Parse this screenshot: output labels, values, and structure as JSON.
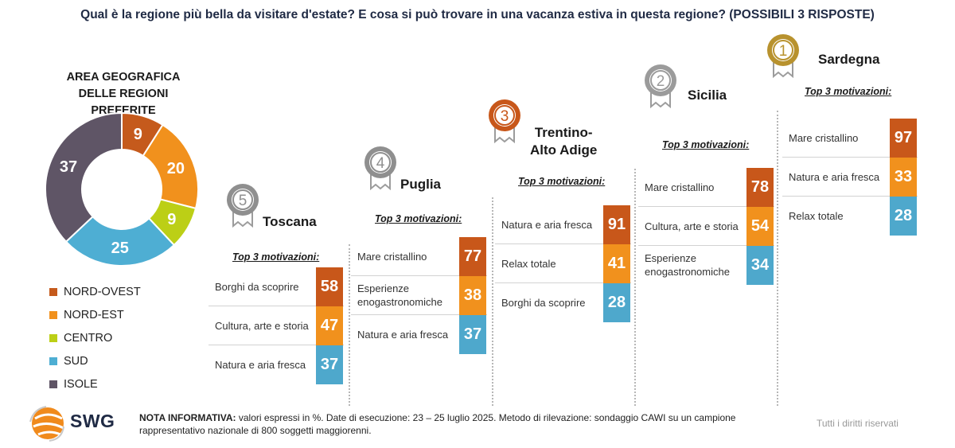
{
  "title": "Qual è la regione più bella da visitare d'estate? E cosa si può trovare in una vacanza estiva in questa regione? (POSSIBILI 3 RISPOSTE)",
  "colors": {
    "top1": "#c8571a",
    "top2": "#f1911d",
    "top3": "#4ea8cc",
    "nord_ovest": "#c55a1c",
    "nord_est": "#f1911d",
    "centro": "#bccf16",
    "sud": "#4eaed3",
    "isole": "#5f5566",
    "gold": "#b8922e",
    "silver": "#9b9b9b",
    "bronze": "#c8571a",
    "grey_medal": "#8f8f8f"
  },
  "chart_data": [
    {
      "type": "pie",
      "title": "AREA GEOGRAFICA DELLE REGIONI PREFERITE",
      "title_lines": [
        "AREA GEOGRAFICA",
        "DELLE REGIONI PREFERITE"
      ],
      "categories": [
        "NORD-OVEST",
        "NORD-EST",
        "CENTRO",
        "SUD",
        "ISOLE"
      ],
      "values": [
        9,
        20,
        9,
        25,
        37
      ],
      "legend": "bottom-left",
      "donut": true
    },
    {
      "type": "table",
      "rank": 5,
      "title": "Toscana",
      "subtitle": "Top 3 motivazioni:",
      "categories": [
        "Borghi da scoprire",
        "Cultura, arte e storia",
        "Natura e aria fresca"
      ],
      "values": [
        58,
        47,
        37
      ]
    },
    {
      "type": "table",
      "rank": 4,
      "title": "Puglia",
      "subtitle": "Top 3 motivazioni:",
      "categories": [
        "Mare cristallino",
        "Esperienze enogastronomiche",
        "Natura e aria fresca"
      ],
      "values": [
        77,
        38,
        37
      ]
    },
    {
      "type": "table",
      "rank": 3,
      "title": "Trentino-Alto Adige",
      "title_lines": [
        "Trentino-",
        "Alto Adige"
      ],
      "subtitle": "Top 3 motivazioni:",
      "categories": [
        "Natura e aria fresca",
        "Relax totale",
        "Borghi da scoprire"
      ],
      "values": [
        91,
        41,
        28
      ]
    },
    {
      "type": "table",
      "rank": 2,
      "title": "Sicilia",
      "subtitle": "Top 3 motivazioni:",
      "categories": [
        "Mare cristallino",
        "Cultura, arte e storia",
        "Esperienze enogastronomiche"
      ],
      "values": [
        78,
        54,
        34
      ]
    },
    {
      "type": "table",
      "rank": 1,
      "title": "Sardegna",
      "subtitle": "Top 3 motivazioni:",
      "categories": [
        "Mare cristallino",
        "Natura e aria fresca",
        "Relax totale"
      ],
      "values": [
        97,
        33,
        28
      ]
    }
  ],
  "footer": {
    "logo": "SWG",
    "note_label": "NOTA INFORMATIVA:",
    "note_text": " valori espressi in %. Date di esecuzione: 23 – 25 luglio 2025. Metodo di rilevazione: sondaggio CAWI su un campione rappresentativo nazionale di 800 soggetti maggiorenni.",
    "rights": "Tutti i diritti riservati"
  }
}
